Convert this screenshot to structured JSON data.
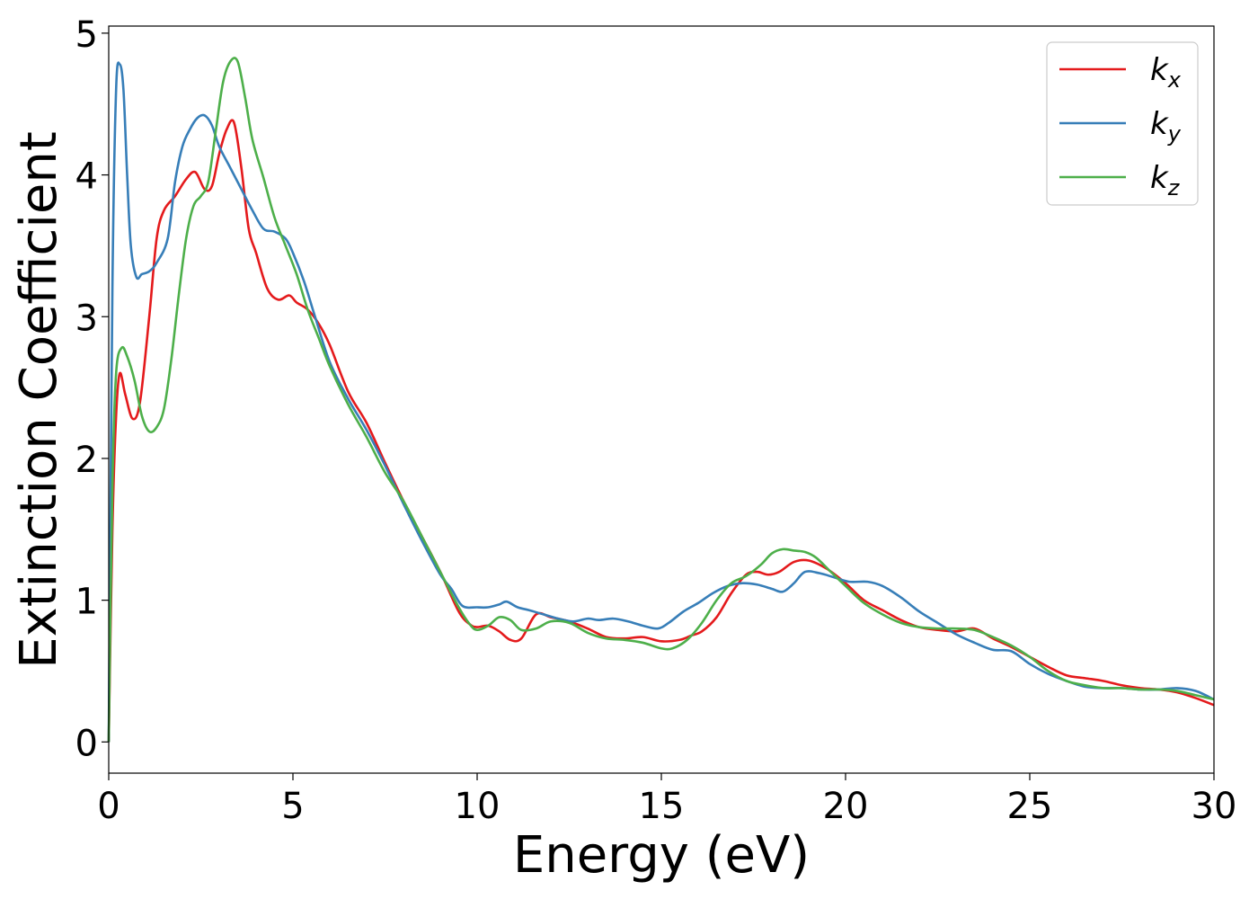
{
  "chart_data": {
    "type": "line",
    "xlabel": "Energy (eV)",
    "ylabel": "Extinction Coefficient",
    "xlim": [
      0,
      30
    ],
    "ylim": [
      -0.22,
      5.05
    ],
    "xticks": [
      0,
      5,
      10,
      15,
      20,
      25,
      30
    ],
    "yticks": [
      0,
      1,
      2,
      3,
      4,
      5
    ],
    "grid": false,
    "legend_position": "top-right",
    "series": [
      {
        "name": "k_x",
        "label_base": "k",
        "label_sub": "x",
        "color": "#e41a1c",
        "x": [
          0,
          0.1,
          0.2,
          0.3,
          0.45,
          0.65,
          0.85,
          1.1,
          1.3,
          1.5,
          1.8,
          2.1,
          2.35,
          2.6,
          2.8,
          3.0,
          3.2,
          3.4,
          3.6,
          3.8,
          4.0,
          4.3,
          4.6,
          4.9,
          5.1,
          5.4,
          5.7,
          6.0,
          6.5,
          7.0,
          7.5,
          8.0,
          8.5,
          9.0,
          9.5,
          9.8,
          10.0,
          10.3,
          10.6,
          10.9,
          11.2,
          11.6,
          12.0,
          12.5,
          13.0,
          13.5,
          14.0,
          14.5,
          15.0,
          15.5,
          15.8,
          16.1,
          16.5,
          16.9,
          17.3,
          17.6,
          17.9,
          18.2,
          18.6,
          19.0,
          19.5,
          20.0,
          20.5,
          21.0,
          21.5,
          22.0,
          22.5,
          23.0,
          23.5,
          24.0,
          24.5,
          25.0,
          25.5,
          26.0,
          26.5,
          27.0,
          27.5,
          28.0,
          28.5,
          29.0,
          29.5,
          30.0
        ],
        "y": [
          0,
          1.5,
          2.3,
          2.6,
          2.45,
          2.28,
          2.4,
          3.0,
          3.55,
          3.75,
          3.85,
          3.97,
          4.02,
          3.9,
          3.92,
          4.15,
          4.32,
          4.37,
          4.05,
          3.62,
          3.45,
          3.2,
          3.12,
          3.15,
          3.1,
          3.05,
          2.95,
          2.8,
          2.47,
          2.25,
          1.97,
          1.7,
          1.45,
          1.2,
          0.92,
          0.83,
          0.81,
          0.82,
          0.78,
          0.72,
          0.73,
          0.9,
          0.88,
          0.85,
          0.8,
          0.74,
          0.73,
          0.74,
          0.71,
          0.72,
          0.75,
          0.78,
          0.88,
          1.05,
          1.18,
          1.2,
          1.18,
          1.2,
          1.27,
          1.28,
          1.22,
          1.12,
          1.0,
          0.93,
          0.86,
          0.81,
          0.79,
          0.78,
          0.8,
          0.73,
          0.67,
          0.6,
          0.53,
          0.47,
          0.45,
          0.43,
          0.4,
          0.38,
          0.37,
          0.35,
          0.31,
          0.26
        ]
      },
      {
        "name": "k_y",
        "label_base": "k",
        "label_sub": "y",
        "color": "#377eb8",
        "x": [
          0,
          0.1,
          0.2,
          0.3,
          0.4,
          0.5,
          0.6,
          0.75,
          0.9,
          1.1,
          1.3,
          1.6,
          1.8,
          2.0,
          2.2,
          2.4,
          2.6,
          2.8,
          3.0,
          3.3,
          3.6,
          3.9,
          4.2,
          4.5,
          4.8,
          5.0,
          5.3,
          5.6,
          6.0,
          6.5,
          7.0,
          7.5,
          8.0,
          8.5,
          9.0,
          9.3,
          9.6,
          10.0,
          10.3,
          10.6,
          10.8,
          11.1,
          11.4,
          11.8,
          12.2,
          12.6,
          13.0,
          13.3,
          13.7,
          14.1,
          14.5,
          14.9,
          15.2,
          15.6,
          16.0,
          16.4,
          16.8,
          17.2,
          17.6,
          18.0,
          18.3,
          18.6,
          18.9,
          19.3,
          19.7,
          20.1,
          20.6,
          21.0,
          21.5,
          22.0,
          22.5,
          23.0,
          23.5,
          24.0,
          24.5,
          25.0,
          25.5,
          26.0,
          26.5,
          27.0,
          27.5,
          28.0,
          28.5,
          29.0,
          29.5,
          30.0
        ],
        "y": [
          0,
          3.2,
          4.6,
          4.78,
          4.6,
          4.0,
          3.5,
          3.28,
          3.3,
          3.32,
          3.38,
          3.55,
          3.95,
          4.2,
          4.32,
          4.4,
          4.42,
          4.35,
          4.2,
          4.05,
          3.9,
          3.75,
          3.62,
          3.6,
          3.55,
          3.45,
          3.25,
          3.0,
          2.68,
          2.42,
          2.2,
          1.95,
          1.68,
          1.42,
          1.18,
          1.08,
          0.96,
          0.95,
          0.95,
          0.97,
          0.99,
          0.95,
          0.93,
          0.9,
          0.87,
          0.85,
          0.87,
          0.86,
          0.87,
          0.85,
          0.82,
          0.8,
          0.84,
          0.92,
          0.98,
          1.05,
          1.1,
          1.12,
          1.11,
          1.08,
          1.06,
          1.12,
          1.2,
          1.19,
          1.16,
          1.13,
          1.13,
          1.1,
          1.02,
          0.92,
          0.84,
          0.76,
          0.7,
          0.65,
          0.64,
          0.55,
          0.48,
          0.43,
          0.39,
          0.38,
          0.38,
          0.37,
          0.37,
          0.38,
          0.36,
          0.3
        ]
      },
      {
        "name": "k_z",
        "label_base": "k",
        "label_sub": "z",
        "color": "#4daf4a",
        "x": [
          0,
          0.1,
          0.2,
          0.35,
          0.5,
          0.7,
          0.9,
          1.1,
          1.3,
          1.5,
          1.7,
          1.9,
          2.1,
          2.3,
          2.5,
          2.7,
          2.9,
          3.1,
          3.3,
          3.5,
          3.7,
          3.9,
          4.2,
          4.5,
          4.8,
          5.1,
          5.4,
          5.7,
          6.0,
          6.5,
          7.0,
          7.5,
          8.0,
          8.5,
          9.0,
          9.5,
          9.8,
          10.0,
          10.3,
          10.6,
          10.9,
          11.2,
          11.6,
          12.0,
          12.5,
          13.0,
          13.5,
          14.0,
          14.5,
          15.0,
          15.3,
          15.7,
          16.1,
          16.5,
          16.9,
          17.3,
          17.7,
          18.0,
          18.3,
          18.6,
          18.9,
          19.2,
          19.6,
          20.0,
          20.5,
          21.0,
          21.5,
          22.0,
          22.5,
          23.0,
          23.5,
          24.0,
          24.5,
          25.0,
          25.5,
          26.0,
          26.5,
          27.0,
          27.5,
          28.0,
          28.5,
          29.0,
          29.5,
          30.0
        ],
        "y": [
          0,
          1.8,
          2.6,
          2.78,
          2.72,
          2.55,
          2.3,
          2.19,
          2.22,
          2.35,
          2.7,
          3.15,
          3.55,
          3.78,
          3.85,
          3.95,
          4.3,
          4.65,
          4.8,
          4.8,
          4.55,
          4.25,
          3.98,
          3.7,
          3.5,
          3.3,
          3.05,
          2.85,
          2.65,
          2.38,
          2.15,
          1.9,
          1.7,
          1.45,
          1.2,
          0.95,
          0.83,
          0.79,
          0.82,
          0.88,
          0.86,
          0.79,
          0.8,
          0.85,
          0.84,
          0.77,
          0.73,
          0.72,
          0.7,
          0.66,
          0.66,
          0.72,
          0.84,
          1.0,
          1.12,
          1.17,
          1.25,
          1.33,
          1.36,
          1.35,
          1.34,
          1.3,
          1.2,
          1.1,
          0.98,
          0.9,
          0.84,
          0.81,
          0.8,
          0.8,
          0.79,
          0.74,
          0.68,
          0.6,
          0.5,
          0.43,
          0.4,
          0.38,
          0.38,
          0.37,
          0.37,
          0.36,
          0.33,
          0.3
        ]
      }
    ]
  }
}
